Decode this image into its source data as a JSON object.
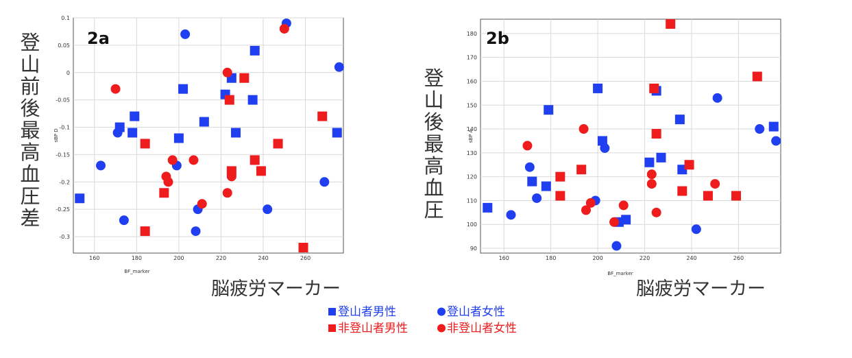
{
  "colors": {
    "blue": "#1f3ff0",
    "red": "#ee1c1c"
  },
  "legend": [
    {
      "marker": "square",
      "color": "#1f3ff0",
      "label": "登山者男性"
    },
    {
      "marker": "circle",
      "color": "#1f3ff0",
      "label": "登山者女性"
    },
    {
      "marker": "square",
      "color": "#ee1c1c",
      "label": "非登山者男性"
    },
    {
      "marker": "circle",
      "color": "#ee1c1c",
      "label": "非登山者女性"
    }
  ],
  "chart_data": [
    {
      "type": "scatter",
      "panel_label": "2a",
      "xlabel": "BF_marker",
      "ylabel": "sBP D",
      "xlabel_big": "脳疲労マーカー",
      "ylabel_big": "登山前後最高血圧差",
      "xlim": [
        150,
        278
      ],
      "ylim": [
        -0.33,
        0.1
      ],
      "xticks": [
        160,
        180,
        200,
        220,
        240,
        260
      ],
      "yticks": [
        -0.3,
        -0.25,
        -0.2,
        -0.15,
        -0.1,
        -0.05,
        0,
        0.05,
        0.1
      ],
      "ytick_labels": [
        "-0.3",
        "-0.25",
        "-0.2",
        "-0.15",
        "-0.1",
        "-0.05",
        "0",
        "0.05",
        "0.1"
      ],
      "grid": true,
      "series": [
        {
          "name": "登山者男性",
          "marker": "square",
          "color": "#1f3ff0",
          "points": [
            [
              153,
              -0.23
            ],
            [
              172,
              -0.1
            ],
            [
              178,
              -0.11
            ],
            [
              179,
              -0.08
            ],
            [
              200,
              -0.12
            ],
            [
              202,
              -0.03
            ],
            [
              212,
              -0.09
            ],
            [
              222,
              -0.04
            ],
            [
              225,
              -0.01
            ],
            [
              227,
              -0.11
            ],
            [
              235,
              -0.05
            ],
            [
              236,
              0.04
            ],
            [
              275,
              -0.11
            ]
          ]
        },
        {
          "name": "登山者女性",
          "marker": "circle",
          "color": "#1f3ff0",
          "points": [
            [
              163,
              -0.17
            ],
            [
              171,
              -0.11
            ],
            [
              174,
              -0.27
            ],
            [
              199,
              -0.17
            ],
            [
              203,
              0.07
            ],
            [
              208,
              -0.29
            ],
            [
              209,
              -0.25
            ],
            [
              242,
              -0.25
            ],
            [
              251,
              0.09
            ],
            [
              269,
              -0.2
            ],
            [
              276,
              0.01
            ]
          ]
        },
        {
          "name": "非登山者男性",
          "marker": "square",
          "color": "#ee1c1c",
          "points": [
            [
              184,
              -0.13
            ],
            [
              184,
              -0.29
            ],
            [
              193,
              -0.22
            ],
            [
              224,
              -0.05
            ],
            [
              225,
              -0.18
            ],
            [
              231,
              -0.01
            ],
            [
              236,
              -0.16
            ],
            [
              239,
              -0.18
            ],
            [
              247,
              -0.13
            ],
            [
              259,
              -0.32
            ],
            [
              268,
              -0.08
            ]
          ]
        },
        {
          "name": "非登山者女性",
          "marker": "circle",
          "color": "#ee1c1c",
          "points": [
            [
              170,
              -0.03
            ],
            [
              194,
              -0.19
            ],
            [
              195,
              -0.2
            ],
            [
              197,
              -0.16
            ],
            [
              207,
              -0.16
            ],
            [
              211,
              -0.24
            ],
            [
              223,
              0.0
            ],
            [
              223,
              -0.22
            ],
            [
              225,
              -0.19
            ],
            [
              250,
              0.08
            ]
          ]
        }
      ]
    },
    {
      "type": "scatter",
      "panel_label": "2b",
      "xlabel": "BF_marker",
      "ylabel": "sBP A",
      "xlabel_big": "脳疲労マーカー",
      "ylabel_big": "登山後最高血圧",
      "xlim": [
        150,
        278
      ],
      "ylim": [
        88,
        186
      ],
      "xticks": [
        160,
        180,
        200,
        220,
        240,
        260
      ],
      "yticks": [
        90,
        100,
        110,
        120,
        130,
        140,
        150,
        160,
        170,
        180
      ],
      "ytick_labels": [
        "90",
        "100",
        "110",
        "120",
        "130",
        "140",
        "150",
        "160",
        "170",
        "180"
      ],
      "grid": true,
      "series": [
        {
          "name": "登山者男性",
          "marker": "square",
          "color": "#1f3ff0",
          "points": [
            [
              153,
              107
            ],
            [
              172,
              118
            ],
            [
              178,
              116
            ],
            [
              179,
              148
            ],
            [
              200,
              157
            ],
            [
              202,
              135
            ],
            [
              209,
              101
            ],
            [
              212,
              102
            ],
            [
              222,
              126
            ],
            [
              225,
              156
            ],
            [
              227,
              128
            ],
            [
              235,
              144
            ],
            [
              236,
              123
            ],
            [
              275,
              141
            ]
          ]
        },
        {
          "name": "登山者女性",
          "marker": "circle",
          "color": "#1f3ff0",
          "points": [
            [
              163,
              104
            ],
            [
              171,
              124
            ],
            [
              174,
              111
            ],
            [
              199,
              110
            ],
            [
              203,
              132
            ],
            [
              208,
              91
            ],
            [
              242,
              98
            ],
            [
              251,
              153
            ],
            [
              269,
              140
            ],
            [
              276,
              135
            ]
          ]
        },
        {
          "name": "非登山者男性",
          "marker": "square",
          "color": "#ee1c1c",
          "points": [
            [
              184,
              120
            ],
            [
              184,
              112
            ],
            [
              193,
              123
            ],
            [
              224,
              157
            ],
            [
              225,
              138
            ],
            [
              231,
              184
            ],
            [
              236,
              114
            ],
            [
              239,
              125
            ],
            [
              247,
              112
            ],
            [
              259,
              112
            ],
            [
              268,
              162
            ]
          ]
        },
        {
          "name": "非登山者女性",
          "marker": "circle",
          "color": "#ee1c1c",
          "points": [
            [
              170,
              133
            ],
            [
              194,
              140
            ],
            [
              195,
              106
            ],
            [
              197,
              109
            ],
            [
              207,
              101
            ],
            [
              211,
              108
            ],
            [
              223,
              121
            ],
            [
              223,
              117
            ],
            [
              225,
              105
            ],
            [
              250,
              117
            ]
          ]
        }
      ]
    }
  ]
}
